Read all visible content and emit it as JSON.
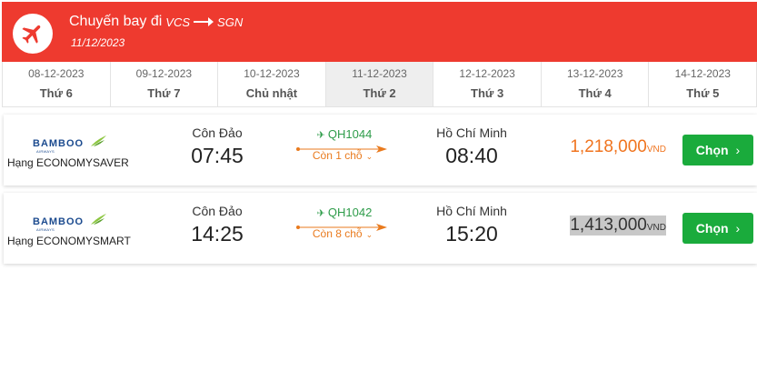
{
  "header": {
    "title": "Chuyến bay đi",
    "from_code": "VCS",
    "to_code": "SGN",
    "date": "11/12/2023",
    "accent_color": "#ee3a2f"
  },
  "tabs": [
    {
      "date": "08-12-2023",
      "day": "Thứ 6"
    },
    {
      "date": "09-12-2023",
      "day": "Thứ 7"
    },
    {
      "date": "10-12-2023",
      "day": "Chủ nhật"
    },
    {
      "date": "11-12-2023",
      "day": "Thứ 2"
    },
    {
      "date": "12-12-2023",
      "day": "Thứ 3"
    },
    {
      "date": "13-12-2023",
      "day": "Thứ 4"
    },
    {
      "date": "14-12-2023",
      "day": "Thứ 5"
    }
  ],
  "active_tab": "11-12-2023",
  "flights": [
    {
      "airline_logo_text": "BAMBOO",
      "airline_logo_sub": "AIRWAYS",
      "class_name": "Hạng ECONOMYSAVER",
      "dep_city": "Côn Đảo",
      "dep_time": "07:45",
      "flight_no": "QH1044",
      "seats": "Còn 1 chỗ",
      "arr_city": "Hồ Chí Minh",
      "arr_time": "08:40",
      "price": "1,218,000",
      "currency": "VND",
      "button": "Chọn"
    },
    {
      "airline_logo_text": "BAMBOO",
      "airline_logo_sub": "AIRWAYS",
      "class_name": "Hạng ECONOMYSMART",
      "dep_city": "Côn Đảo",
      "dep_time": "14:25",
      "flight_no": "QH1042",
      "seats": "Còn 8 chỗ",
      "arr_city": "Hồ Chí Minh",
      "arr_time": "15:20",
      "price": "1,413,000",
      "currency": "VND",
      "button": "Chọn"
    }
  ],
  "colors": {
    "price_highlight": "#f0741f",
    "button": "#1aab3c",
    "flight_no": "#2e9c4a",
    "seats": "#e97a1d"
  }
}
